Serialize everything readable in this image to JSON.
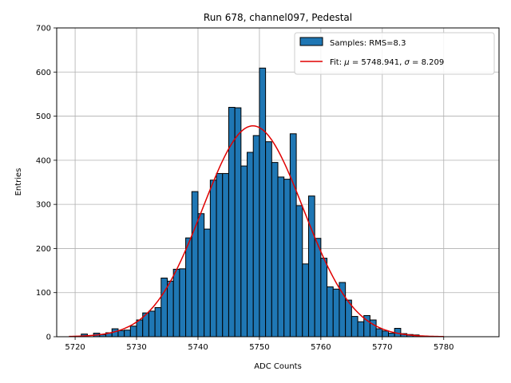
{
  "chart_data": {
    "type": "bar",
    "title": "Run 678, channel097, Pedestal",
    "xlabel": "ADC Counts",
    "ylabel": "Entries",
    "xlim": [
      5717,
      5789
    ],
    "ylim": [
      0,
      700
    ],
    "xticks": [
      5720,
      5730,
      5740,
      5750,
      5760,
      5770,
      5780
    ],
    "yticks": [
      0,
      100,
      200,
      300,
      400,
      500,
      600,
      700
    ],
    "grid": true,
    "legend_position": "top-right",
    "bin_width": 1,
    "histogram": {
      "name": "Samples: RMS=8.3",
      "color": "#1f77b4",
      "bin_edges_start": 5720,
      "values": [
        0,
        6,
        0,
        8,
        5,
        9,
        18,
        14,
        15,
        24,
        38,
        54,
        58,
        66,
        133,
        126,
        153,
        154,
        224,
        329,
        279,
        244,
        355,
        370,
        370,
        520,
        519,
        387,
        418,
        456,
        609,
        442,
        395,
        362,
        357,
        460,
        297,
        165,
        319,
        223,
        178,
        113,
        108,
        123,
        83,
        46,
        34,
        48,
        38,
        18,
        13,
        8,
        19,
        7,
        5,
        4,
        1,
        0,
        0,
        0,
        0
      ]
    },
    "fit": {
      "name": "Fit: μ = 5748.941, σ = 8.209",
      "label_prefix": "Fit:",
      "label_mu": "μ",
      "label_mu_value": "= 5748.941,",
      "label_sigma": "σ",
      "label_sigma_value": "= 8.209",
      "color": "#e00000",
      "mu": 5748.941,
      "sigma": 8.209,
      "amplitude": 478,
      "x_range": [
        5719,
        5780
      ]
    }
  }
}
